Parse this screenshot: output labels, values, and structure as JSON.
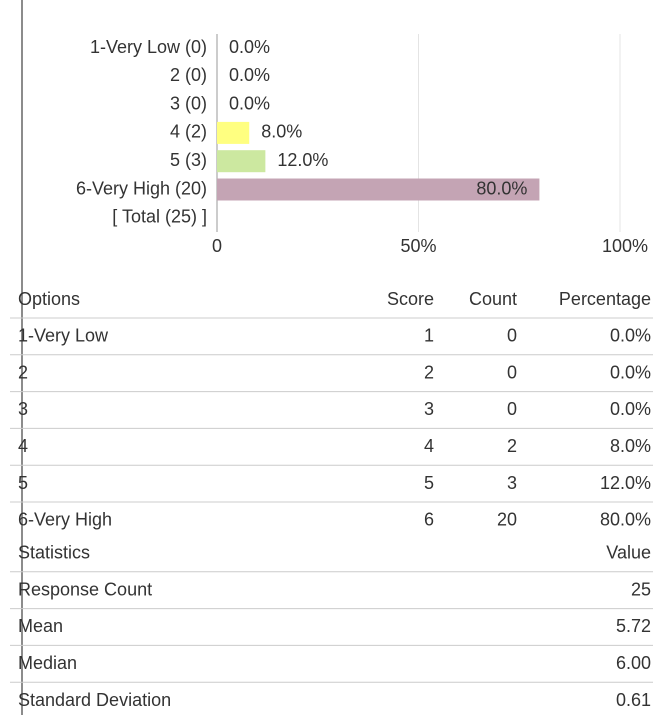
{
  "chart_data": {
    "type": "hbar",
    "categories": [
      "1-Very Low (0)",
      "2 (0)",
      "3 (0)",
      "4 (2)",
      "5 (3)",
      "6-Very High (20)"
    ],
    "values": [
      0,
      0,
      0,
      8,
      12,
      80
    ],
    "value_labels": [
      "0.0%",
      "0.0%",
      "0.0%",
      "8.0%",
      "12.0%",
      "80.0%"
    ],
    "colors": [
      "#ffff80",
      "#ffff80",
      "#ffff80",
      "#ffff80",
      "#cce8a0",
      "#c4a4b4"
    ],
    "total_label": "[ Total (25) ]",
    "xlim": [
      0,
      100
    ],
    "xticks": [
      0,
      {
        "value": 50,
        "label": "50%"
      },
      {
        "value": 100,
        "label": "100%"
      }
    ],
    "grid": true
  },
  "options_table": {
    "columns": [
      "Options",
      "Score",
      "Count",
      "Percentage"
    ],
    "rows": [
      [
        "1-Very Low",
        1,
        0,
        "0.0%"
      ],
      [
        "2",
        2,
        0,
        "0.0%"
      ],
      [
        "3",
        3,
        0,
        "0.0%"
      ],
      [
        "4",
        4,
        2,
        "8.0%"
      ],
      [
        "5",
        5,
        3,
        "12.0%"
      ],
      [
        "6-Very High",
        6,
        20,
        "80.0%"
      ]
    ]
  },
  "statistics_table": {
    "columns": [
      "Statistics",
      "Value"
    ],
    "rows": [
      [
        "Response Count",
        25
      ],
      [
        "Mean",
        5.72
      ],
      [
        "Median",
        "6.00"
      ],
      [
        "Standard Deviation",
        0.61
      ]
    ]
  }
}
